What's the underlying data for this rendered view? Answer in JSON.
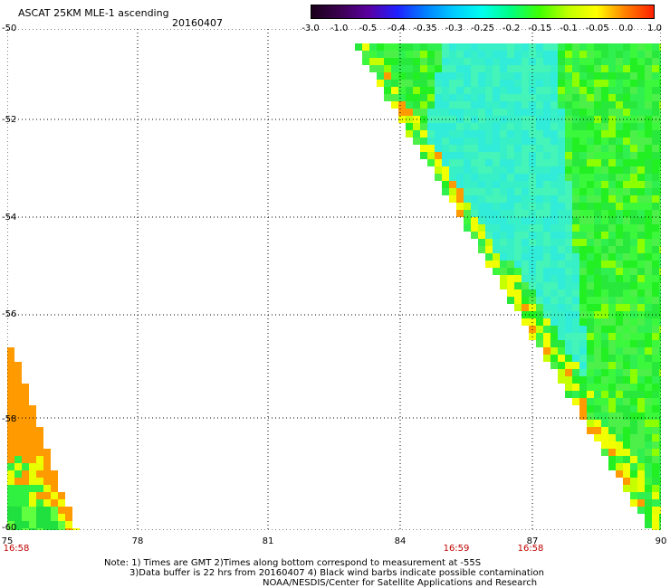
{
  "header": {
    "title": "ASCAT 25KM MLE-1 ascending",
    "date": "20160407"
  },
  "colorbar": {
    "labels": [
      "-3.0",
      "-1.0",
      "-0.5",
      "-0.4",
      "-0.35",
      "-0.3",
      "-0.25",
      "-0.2",
      "-0.15",
      "-0.1",
      "-0.05",
      "0.0",
      "1.0"
    ],
    "colors": [
      "#1a001a",
      "#3c0050",
      "#5a00a0",
      "#2020ff",
      "#0080ff",
      "#00ccff",
      "#00ffee",
      "#00ff80",
      "#40ff00",
      "#c0ff00",
      "#ffff00",
      "#ff8000",
      "#ff2000"
    ]
  },
  "axes": {
    "lat_labels": [
      "-50",
      "-52",
      "-54",
      "-56",
      "-58",
      "-60"
    ],
    "lon_labels": [
      "75",
      "78",
      "81",
      "84",
      "87",
      "90"
    ],
    "time_labels": [
      "16:58",
      "16:59",
      "16:58"
    ]
  },
  "notes": {
    "line1": "Note: 1) Times are GMT 2)Times along bottom correspond to measurement at -55S",
    "line2": "3)Data buffer is 22 hrs from 20160407 4) Black wind barbs indicate possible contamination",
    "line3": "NOAA/NESDIS/Center for Satellite Applications and Research"
  }
}
